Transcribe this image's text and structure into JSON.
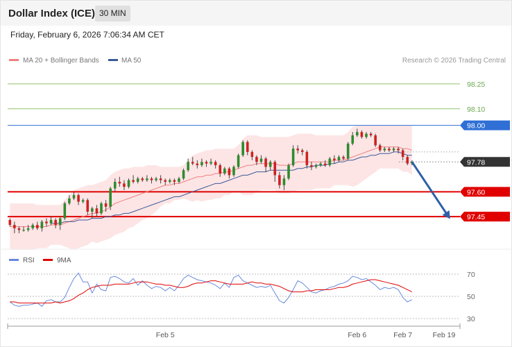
{
  "header": {
    "title": "Dollar Index (ICE)",
    "interval": "30 MIN"
  },
  "timestamp": "Friday, February 6, 2026 7:06:34 AM CET",
  "copyright": "Research © 2026 Trading Central",
  "colors": {
    "ma20": "#f08080",
    "ma50": "#3b5998",
    "bands": "#fde0e0",
    "up": "#2e8b2e",
    "down": "#cc2222",
    "support": "#e00000",
    "resistance": "#8fc26a",
    "pivot": "#2f6fd6",
    "current": "#333333",
    "arrow": "#2f5fa8",
    "rsi": "#6688dd",
    "rsi_ma": "#e00000"
  },
  "chart_data": [
    {
      "type": "candlestick",
      "legend": [
        {
          "name": "MA 20 + Bollinger Bands",
          "color": "#f08080"
        },
        {
          "name": "MA 50",
          "color": "#3b5998"
        }
      ],
      "legend_position": "top-left",
      "ylim": [
        97.25,
        98.35
      ],
      "levels": [
        {
          "label": "98.25",
          "value": 98.25,
          "role": "resistance"
        },
        {
          "label": "98.10",
          "value": 98.1,
          "role": "resistance"
        },
        {
          "label": "98.00",
          "value": 98.0,
          "role": "pivot"
        },
        {
          "label": "97.78",
          "value": 97.78,
          "role": "current"
        },
        {
          "label": "97.60",
          "value": 97.6,
          "role": "support"
        },
        {
          "label": "97.45",
          "value": 97.45,
          "role": "support"
        }
      ],
      "x_ticks": [
        {
          "label": "Feb 5",
          "index": 34
        },
        {
          "label": "Feb 6",
          "index": 76
        },
        {
          "label": "Feb 7",
          "index": 86
        },
        {
          "label": "Feb 19",
          "index": 95
        }
      ],
      "xlim": [
        -0.5,
        98.5
      ],
      "candles": [
        [
          97.43,
          97.4,
          97.44,
          97.39
        ],
        [
          97.4,
          97.38,
          97.42,
          97.35
        ],
        [
          97.38,
          97.37,
          97.39,
          97.35
        ],
        [
          97.37,
          97.37,
          97.39,
          97.36
        ],
        [
          97.37,
          97.38,
          97.4,
          97.36
        ],
        [
          97.38,
          97.4,
          97.41,
          97.37
        ],
        [
          97.4,
          97.38,
          97.42,
          97.37
        ],
        [
          97.38,
          97.42,
          97.43,
          97.36
        ],
        [
          97.42,
          97.41,
          97.44,
          97.39
        ],
        [
          97.41,
          97.43,
          97.45,
          97.4
        ],
        [
          97.43,
          97.4,
          97.44,
          97.38
        ],
        [
          97.4,
          97.44,
          97.45,
          97.37
        ],
        [
          97.44,
          97.53,
          97.54,
          97.43
        ],
        [
          97.53,
          97.56,
          97.58,
          97.52
        ],
        [
          97.56,
          97.58,
          97.6,
          97.55
        ],
        [
          97.58,
          97.54,
          97.59,
          97.52
        ],
        [
          97.54,
          97.55,
          97.56,
          97.53
        ],
        [
          97.55,
          97.48,
          97.56,
          97.46
        ],
        [
          97.48,
          97.5,
          97.51,
          97.44
        ],
        [
          97.5,
          97.47,
          97.52,
          97.45
        ],
        [
          97.47,
          97.53,
          97.54,
          97.46
        ],
        [
          97.53,
          97.51,
          97.55,
          97.48
        ],
        [
          97.51,
          97.62,
          97.63,
          97.49
        ],
        [
          97.62,
          97.66,
          97.68,
          97.6
        ],
        [
          97.66,
          97.65,
          97.69,
          97.63
        ],
        [
          97.65,
          97.63,
          97.67,
          97.61
        ],
        [
          97.63,
          97.67,
          97.68,
          97.62
        ],
        [
          97.67,
          97.66,
          97.7,
          97.65
        ],
        [
          97.66,
          97.68,
          97.69,
          97.65
        ],
        [
          97.68,
          97.67,
          97.69,
          97.66
        ],
        [
          97.67,
          97.68,
          97.7,
          97.66
        ],
        [
          97.68,
          97.67,
          97.69,
          97.65
        ],
        [
          97.67,
          97.68,
          97.69,
          97.66
        ],
        [
          97.68,
          97.67,
          97.7,
          97.65
        ],
        [
          97.67,
          97.66,
          97.68,
          97.64
        ],
        [
          97.66,
          97.67,
          97.68,
          97.65
        ],
        [
          97.67,
          97.66,
          97.68,
          97.64
        ],
        [
          97.66,
          97.68,
          97.69,
          97.65
        ],
        [
          97.68,
          97.73,
          97.74,
          97.67
        ],
        [
          97.73,
          97.78,
          97.8,
          97.72
        ],
        [
          97.78,
          97.77,
          97.81,
          97.76
        ],
        [
          97.77,
          97.76,
          97.79,
          97.74
        ],
        [
          97.76,
          97.78,
          97.8,
          97.75
        ],
        [
          97.78,
          97.77,
          97.79,
          97.75
        ],
        [
          97.77,
          97.78,
          97.8,
          97.76
        ],
        [
          97.78,
          97.76,
          97.79,
          97.74
        ],
        [
          97.76,
          97.71,
          97.77,
          97.69
        ],
        [
          97.71,
          97.74,
          97.75,
          97.7
        ],
        [
          97.74,
          97.7,
          97.75,
          97.68
        ],
        [
          97.7,
          97.75,
          97.76,
          97.69
        ],
        [
          97.75,
          97.82,
          97.83,
          97.74
        ],
        [
          97.82,
          97.9,
          97.91,
          97.81
        ],
        [
          97.9,
          97.84,
          97.91,
          97.82
        ],
        [
          97.84,
          97.81,
          97.85,
          97.79
        ],
        [
          97.81,
          97.78,
          97.82,
          97.76
        ],
        [
          97.78,
          97.8,
          97.82,
          97.77
        ],
        [
          97.8,
          97.75,
          97.81,
          97.72
        ],
        [
          97.75,
          97.78,
          97.79,
          97.73
        ],
        [
          97.78,
          97.7,
          97.79,
          97.66
        ],
        [
          97.7,
          97.64,
          97.72,
          97.62
        ],
        [
          97.64,
          97.68,
          97.7,
          97.61
        ],
        [
          97.68,
          97.76,
          97.77,
          97.67
        ],
        [
          97.76,
          97.86,
          97.88,
          97.75
        ],
        [
          97.86,
          97.85,
          97.88,
          97.83
        ],
        [
          97.85,
          97.84,
          97.86,
          97.82
        ],
        [
          97.84,
          97.76,
          97.85,
          97.74
        ],
        [
          97.76,
          97.75,
          97.78,
          97.73
        ],
        [
          97.75,
          97.76,
          97.77,
          97.74
        ],
        [
          97.76,
          97.77,
          97.78,
          97.75
        ],
        [
          97.77,
          97.76,
          97.79,
          97.75
        ],
        [
          97.76,
          97.8,
          97.81,
          97.75
        ],
        [
          97.8,
          97.79,
          97.82,
          97.77
        ],
        [
          97.79,
          97.81,
          97.82,
          97.78
        ],
        [
          97.81,
          97.8,
          97.82,
          97.79
        ],
        [
          97.8,
          97.89,
          97.9,
          97.79
        ],
        [
          97.89,
          97.94,
          97.96,
          97.88
        ],
        [
          97.94,
          97.96,
          97.98,
          97.93
        ],
        [
          97.96,
          97.93,
          97.97,
          97.92
        ],
        [
          97.93,
          97.95,
          97.96,
          97.92
        ],
        [
          97.95,
          97.94,
          97.96,
          97.93
        ],
        [
          97.94,
          97.88,
          97.95,
          97.87
        ],
        [
          97.88,
          97.85,
          97.89,
          97.84
        ],
        [
          97.85,
          97.86,
          97.87,
          97.84
        ],
        [
          97.86,
          97.85,
          97.87,
          97.84
        ],
        [
          97.85,
          97.86,
          97.87,
          97.84
        ],
        [
          97.86,
          97.85,
          97.87,
          97.83
        ],
        [
          97.85,
          97.81,
          97.86,
          97.79
        ],
        [
          97.81,
          97.77,
          97.82,
          97.76
        ],
        [
          97.77,
          97.78,
          97.79,
          97.76
        ]
      ],
      "ma20": [
        97.39,
        97.39,
        97.39,
        97.39,
        97.39,
        97.39,
        97.39,
        97.39,
        97.39,
        97.4,
        97.4,
        97.4,
        97.41,
        97.42,
        97.43,
        97.44,
        97.45,
        97.46,
        97.47,
        97.47,
        97.48,
        97.49,
        97.51,
        97.53,
        97.54,
        97.55,
        97.56,
        97.57,
        97.58,
        97.59,
        97.6,
        97.61,
        97.62,
        97.63,
        97.64,
        97.64,
        97.65,
        97.65,
        97.66,
        97.67,
        97.68,
        97.69,
        97.69,
        97.7,
        97.7,
        97.71,
        97.71,
        97.72,
        97.72,
        97.73,
        97.74,
        97.75,
        97.76,
        97.76,
        97.77,
        97.77,
        97.77,
        97.77,
        97.77,
        97.76,
        97.76,
        97.76,
        97.77,
        97.78,
        97.78,
        97.78,
        97.78,
        97.78,
        97.78,
        97.78,
        97.78,
        97.79,
        97.79,
        97.79,
        97.8,
        97.81,
        97.82,
        97.83,
        97.84,
        97.85,
        97.86,
        97.87,
        97.87,
        97.87,
        97.87,
        97.87,
        97.86,
        97.86,
        97.85
      ],
      "upper_band": [
        97.53,
        97.53,
        97.53,
        97.53,
        97.53,
        97.53,
        97.52,
        97.52,
        97.52,
        97.52,
        97.52,
        97.52,
        97.55,
        97.58,
        97.61,
        97.62,
        97.63,
        97.64,
        97.64,
        97.65,
        97.66,
        97.67,
        97.7,
        97.72,
        97.73,
        97.74,
        97.74,
        97.75,
        97.75,
        97.75,
        97.76,
        97.76,
        97.76,
        97.75,
        97.75,
        97.75,
        97.75,
        97.75,
        97.76,
        97.79,
        97.82,
        97.83,
        97.84,
        97.85,
        97.85,
        97.86,
        97.86,
        97.86,
        97.86,
        97.86,
        97.88,
        97.92,
        97.94,
        97.94,
        97.94,
        97.93,
        97.93,
        97.93,
        97.93,
        97.93,
        97.93,
        97.93,
        97.94,
        97.95,
        97.95,
        97.95,
        97.95,
        97.94,
        97.94,
        97.94,
        97.94,
        97.94,
        97.94,
        97.94,
        97.96,
        97.99,
        98.0,
        98.0,
        98.0,
        98.0,
        98.0,
        98.0,
        98.0,
        98.0,
        98.0,
        98.0,
        98.0,
        98.0,
        98.0
      ],
      "lower_band": [
        97.25,
        97.25,
        97.25,
        97.25,
        97.25,
        97.25,
        97.26,
        97.26,
        97.26,
        97.28,
        97.28,
        97.28,
        97.27,
        97.26,
        97.25,
        97.26,
        97.27,
        97.28,
        97.3,
        97.29,
        97.3,
        97.31,
        97.32,
        97.34,
        97.35,
        97.36,
        97.38,
        97.39,
        97.41,
        97.43,
        97.44,
        97.46,
        97.48,
        97.51,
        97.53,
        97.53,
        97.55,
        97.55,
        97.56,
        97.55,
        97.54,
        97.55,
        97.54,
        97.55,
        97.55,
        97.56,
        97.56,
        97.58,
        97.58,
        97.6,
        97.6,
        97.58,
        97.58,
        97.58,
        97.6,
        97.61,
        97.61,
        97.61,
        97.61,
        97.59,
        97.59,
        97.59,
        97.6,
        97.61,
        97.61,
        97.61,
        97.61,
        97.62,
        97.62,
        97.62,
        97.62,
        97.64,
        97.64,
        97.64,
        97.64,
        97.63,
        97.64,
        97.66,
        97.68,
        97.7,
        97.72,
        97.74,
        97.74,
        97.74,
        97.74,
        97.74,
        97.72,
        97.72,
        97.7
      ],
      "ma50": [
        null,
        null,
        null,
        null,
        null,
        null,
        null,
        null,
        null,
        97.41,
        97.41,
        97.41,
        97.42,
        97.42,
        97.42,
        97.43,
        97.43,
        97.43,
        97.44,
        97.44,
        97.44,
        97.45,
        97.45,
        97.46,
        97.46,
        97.47,
        97.47,
        97.48,
        97.49,
        97.5,
        97.51,
        97.52,
        97.53,
        97.54,
        97.55,
        97.56,
        97.57,
        97.57,
        97.58,
        97.59,
        97.6,
        97.61,
        97.62,
        97.63,
        97.64,
        97.65,
        97.65,
        97.66,
        97.67,
        97.68,
        97.69,
        97.7,
        97.7,
        97.71,
        97.72,
        97.72,
        97.72,
        97.73,
        97.73,
        97.73,
        97.73,
        97.73,
        97.73,
        97.74,
        97.74,
        97.75,
        97.75,
        97.76,
        97.76,
        97.76,
        97.77,
        97.77,
        97.78,
        97.78,
        97.79,
        97.79,
        97.8,
        97.81,
        97.81,
        97.82,
        97.82,
        97.83,
        97.83,
        97.83,
        97.84,
        97.84,
        97.83,
        97.82,
        97.82
      ],
      "projection": {
        "from": [
          88,
          97.78
        ],
        "to": [
          96,
          97.45
        ]
      }
    },
    {
      "type": "line",
      "legend": [
        {
          "name": "RSI",
          "color": "#6688dd"
        },
        {
          "name": "9MA",
          "color": "#e00000"
        }
      ],
      "legend_position": "top-left",
      "ylim": [
        25,
        75
      ],
      "y_ticks": [
        70,
        50,
        30
      ],
      "series": [
        {
          "name": "RSI",
          "values": [
            45,
            42,
            41,
            42,
            42,
            43,
            44,
            41,
            46,
            47,
            45,
            45,
            49,
            58,
            66,
            71,
            63,
            63,
            53,
            61,
            56,
            55,
            67,
            68,
            66,
            63,
            62,
            66,
            60,
            64,
            60,
            57,
            59,
            58,
            55,
            58,
            55,
            60,
            66,
            69,
            67,
            65,
            64,
            63,
            62,
            60,
            57,
            62,
            58,
            67,
            69,
            64,
            62,
            60,
            58,
            59,
            58,
            60,
            53,
            46,
            44,
            49,
            56,
            64,
            62,
            58,
            54,
            53,
            55,
            56,
            58,
            59,
            61,
            62,
            64,
            68,
            67,
            65,
            66,
            63,
            60,
            56,
            58,
            57,
            58,
            56,
            49,
            45,
            47
          ]
        },
        {
          "name": "9MA",
          "values": [
            45,
            45,
            44,
            44,
            44,
            44,
            44,
            44,
            44,
            44,
            45,
            44,
            45,
            46,
            48,
            51,
            53,
            56,
            58,
            59,
            60,
            60,
            60,
            61,
            61,
            61,
            61,
            62,
            63,
            63,
            63,
            62,
            61,
            61,
            60,
            60,
            59,
            58,
            58,
            59,
            61,
            62,
            62,
            63,
            64,
            64,
            63,
            62,
            61,
            61,
            61,
            61,
            62,
            63,
            62,
            62,
            61,
            61,
            60,
            59,
            57,
            55,
            54,
            54,
            54,
            55,
            55,
            56,
            56,
            56,
            56,
            57,
            58,
            58,
            59,
            61,
            62,
            63,
            64,
            65,
            65,
            64,
            63,
            62,
            61,
            60,
            58,
            56,
            54
          ]
        }
      ],
      "x_ticks": [
        {
          "label": "Feb 5",
          "index": 34
        },
        {
          "label": "Feb 6",
          "index": 76
        },
        {
          "label": "Feb 7",
          "index": 86
        },
        {
          "label": "Feb 19",
          "index": 95
        }
      ],
      "xlim": [
        -0.5,
        98.5
      ]
    }
  ]
}
